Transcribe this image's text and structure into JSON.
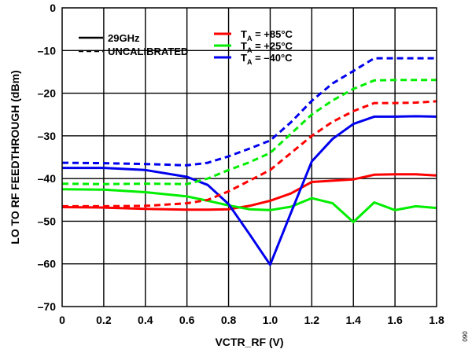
{
  "chart_data": {
    "type": "line",
    "xlabel": "VCTR_RF (V)",
    "ylabel": "LO TO RF FEEDTHROUGH (dBm)",
    "xlim": [
      0,
      1.8
    ],
    "ylim": [
      -70,
      0
    ],
    "x_ticks": [
      "0",
      "0.2",
      "0.4",
      "0.6",
      "0.8",
      "1.0",
      "1.2",
      "1.4",
      "1.6",
      "1.8"
    ],
    "y_ticks": [
      "0",
      "–10",
      "–20",
      "–30",
      "–40",
      "–50",
      "–60",
      "–70"
    ],
    "grid": true,
    "figure_id": "090",
    "legend": {
      "style_entries": [
        {
          "label": "29GHz",
          "dash": "solid"
        },
        {
          "label": "UNCALIBRATED",
          "dash": "dashed"
        }
      ],
      "color_entries": [
        {
          "prefix": "T",
          "sub": "A",
          "suffix": " = +85°C",
          "color": "#ff0000"
        },
        {
          "prefix": "T",
          "sub": "A",
          "suffix": " = +25°C",
          "color": "#00ee00"
        },
        {
          "prefix": "T",
          "sub": "A",
          "suffix": " = –40°C",
          "color": "#0000ee"
        }
      ]
    },
    "series": [
      {
        "temp": "+85°C",
        "style": "solid",
        "color": "#ff0000",
        "x": [
          0,
          0.2,
          0.4,
          0.6,
          0.7,
          0.8,
          0.9,
          1.0,
          1.1,
          1.2,
          1.3,
          1.4,
          1.5,
          1.6,
          1.7,
          1.8
        ],
        "y": [
          -46.7,
          -46.8,
          -47.1,
          -47.3,
          -47.3,
          -47.2,
          -46.4,
          -45.2,
          -43.5,
          -40.8,
          -40.5,
          -40.2,
          -39.1,
          -39.0,
          -39.0,
          -39.3
        ]
      },
      {
        "temp": "+25°C",
        "style": "solid",
        "color": "#00ee00",
        "x": [
          0,
          0.2,
          0.4,
          0.6,
          0.7,
          0.8,
          0.9,
          1.0,
          1.1,
          1.2,
          1.3,
          1.4,
          1.5,
          1.6,
          1.7,
          1.8
        ],
        "y": [
          -42.5,
          -42.6,
          -43.2,
          -44.2,
          -45.2,
          -46.3,
          -47.2,
          -47.4,
          -46.6,
          -44.6,
          -45.8,
          -50.2,
          -45.6,
          -47.4,
          -46.5,
          -46.9
        ]
      },
      {
        "temp": "–40°C",
        "style": "solid",
        "color": "#0000ee",
        "x": [
          0,
          0.2,
          0.4,
          0.6,
          0.7,
          0.8,
          0.9,
          1.0,
          1.1,
          1.2,
          1.3,
          1.4,
          1.5,
          1.6,
          1.7,
          1.8
        ],
        "y": [
          -37.5,
          -37.5,
          -38.0,
          -39.6,
          -41.5,
          -46.0,
          -53.0,
          -60.2,
          -48.0,
          -36.0,
          -30.7,
          -27.2,
          -25.5,
          -25.5,
          -25.4,
          -25.5
        ]
      },
      {
        "temp": "+85°C",
        "style": "dashed",
        "color": "#ff0000",
        "x": [
          0,
          0.2,
          0.4,
          0.6,
          0.7,
          0.8,
          0.9,
          1.0,
          1.1,
          1.2,
          1.3,
          1.4,
          1.5,
          1.6,
          1.7,
          1.8
        ],
        "y": [
          -46.5,
          -46.5,
          -46.4,
          -45.8,
          -45.0,
          -43.0,
          -40.5,
          -38.0,
          -34.0,
          -30.0,
          -26.7,
          -24.2,
          -22.3,
          -22.3,
          -22.2,
          -21.9
        ]
      },
      {
        "temp": "+25°C",
        "style": "dashed",
        "color": "#00ee00",
        "x": [
          0,
          0.2,
          0.4,
          0.6,
          0.7,
          0.8,
          0.9,
          1.0,
          1.1,
          1.2,
          1.3,
          1.4,
          1.5,
          1.6,
          1.7,
          1.8
        ],
        "y": [
          -41.2,
          -41.3,
          -41.2,
          -41.3,
          -40.0,
          -38.0,
          -36.2,
          -34.0,
          -29.5,
          -25.0,
          -21.7,
          -19.0,
          -17.0,
          -16.9,
          -16.9,
          -16.9
        ]
      },
      {
        "temp": "–40°C",
        "style": "dashed",
        "color": "#0000ee",
        "x": [
          0,
          0.2,
          0.4,
          0.6,
          0.7,
          0.8,
          0.9,
          1.0,
          1.1,
          1.2,
          1.3,
          1.4,
          1.5,
          1.6,
          1.7,
          1.8
        ],
        "y": [
          -36.3,
          -36.4,
          -36.6,
          -36.9,
          -36.3,
          -34.8,
          -33.0,
          -31.1,
          -26.8,
          -21.8,
          -17.7,
          -14.8,
          -11.8,
          -11.8,
          -11.8,
          -11.8
        ]
      }
    ]
  }
}
